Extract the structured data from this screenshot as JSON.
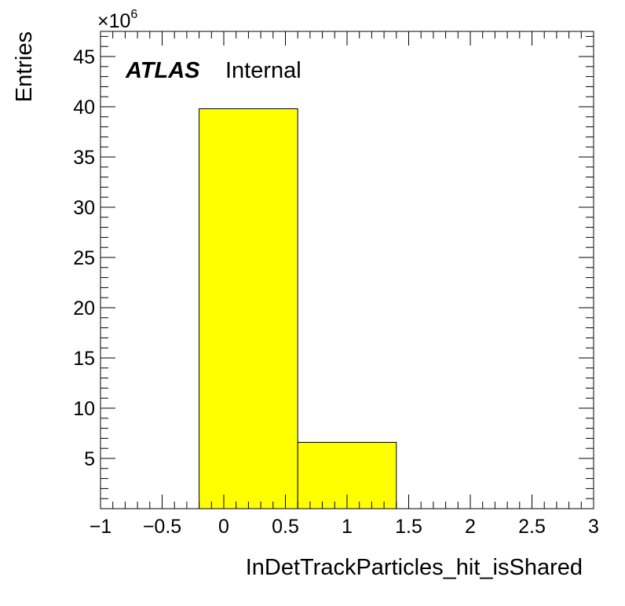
{
  "chart_data": {
    "type": "bar",
    "subtype": "histogram",
    "bin_edges": [
      -0.2,
      0.6,
      1.4
    ],
    "values": [
      39.8,
      6.6
    ],
    "value_multiplier_label": "10",
    "value_multiplier_exponent": "6",
    "xlabel": "InDetTrackParticles_hit_isShared",
    "ylabel": "Entries",
    "xlim": [
      -1,
      3
    ],
    "ylim": [
      0,
      47.5
    ],
    "xticks": [
      -1,
      -0.5,
      0,
      0.5,
      1,
      1.5,
      2,
      2.5,
      3
    ],
    "xtick_labels": [
      "−1",
      "−0.5",
      "0",
      "0.5",
      "1",
      "1.5",
      "2",
      "2.5",
      "3"
    ],
    "yticks": [
      5,
      10,
      15,
      20,
      25,
      30,
      35,
      40,
      45
    ],
    "ytick_labels": [
      "5",
      "10",
      "15",
      "20",
      "25",
      "30",
      "35",
      "40",
      "45"
    ],
    "x_minor_step": 0.1,
    "y_minor_step": 1,
    "grid": false,
    "legend": "none",
    "fill_color": "#ffff00",
    "edge_color": "#000000"
  },
  "annotation": {
    "brand": "ATLAS",
    "status": "Internal"
  }
}
